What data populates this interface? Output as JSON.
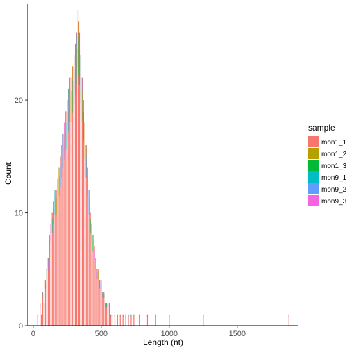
{
  "chart_data": {
    "type": "bar",
    "subtype": "stacked-histogram",
    "title": "",
    "xlabel": "Length (nt)",
    "ylabel": "Count",
    "xlim": [
      -40,
      1950
    ],
    "ylim": [
      0,
      28.5
    ],
    "xticks": [
      0,
      500,
      1000,
      1500
    ],
    "xtick_labels": [
      "0",
      "500",
      "1000",
      "1500"
    ],
    "yticks": [
      0,
      10,
      20
    ],
    "ytick_labels": [
      "0",
      "10",
      "20"
    ],
    "grid": false,
    "legend": {
      "title": "sample",
      "placement": "right",
      "entries": [
        {
          "label": "mon1_1",
          "color": "#F8766D"
        },
        {
          "label": "mon1_2",
          "color": "#B79F00"
        },
        {
          "label": "mon1_3",
          "color": "#00BA38"
        },
        {
          "label": "mon9_1",
          "color": "#00BFC4"
        },
        {
          "label": "mon9_2",
          "color": "#619CFF"
        },
        {
          "label": "mon9_3",
          "color": "#F564E3"
        }
      ]
    },
    "bin_width_nt": 5,
    "base_series": "mon1_1",
    "totals": [
      [
        30,
        1
      ],
      [
        50,
        2
      ],
      [
        60,
        1
      ],
      [
        70,
        3
      ],
      [
        80,
        2
      ],
      [
        90,
        4
      ],
      [
        100,
        5
      ],
      [
        110,
        6
      ],
      [
        120,
        8
      ],
      [
        130,
        9
      ],
      [
        140,
        10
      ],
      [
        150,
        11
      ],
      [
        160,
        12
      ],
      [
        170,
        12
      ],
      [
        180,
        13
      ],
      [
        190,
        14
      ],
      [
        200,
        15
      ],
      [
        210,
        16
      ],
      [
        220,
        17
      ],
      [
        230,
        18
      ],
      [
        240,
        19
      ],
      [
        250,
        20
      ],
      [
        260,
        21
      ],
      [
        270,
        22
      ],
      [
        280,
        22
      ],
      [
        290,
        23
      ],
      [
        300,
        24
      ],
      [
        310,
        25
      ],
      [
        320,
        26
      ],
      [
        330,
        28
      ],
      [
        335,
        27
      ],
      [
        340,
        26
      ],
      [
        350,
        24
      ],
      [
        360,
        22
      ],
      [
        370,
        20
      ],
      [
        380,
        18
      ],
      [
        390,
        16
      ],
      [
        400,
        14
      ],
      [
        410,
        12
      ],
      [
        420,
        10
      ],
      [
        430,
        9
      ],
      [
        440,
        8
      ],
      [
        450,
        7
      ],
      [
        460,
        6
      ],
      [
        470,
        5
      ],
      [
        480,
        5
      ],
      [
        490,
        4
      ],
      [
        500,
        4
      ],
      [
        510,
        3
      ],
      [
        520,
        3
      ],
      [
        530,
        2
      ],
      [
        540,
        2
      ],
      [
        550,
        2
      ],
      [
        560,
        2
      ],
      [
        570,
        1
      ],
      [
        580,
        1
      ],
      [
        600,
        1
      ],
      [
        620,
        1
      ],
      [
        640,
        1
      ],
      [
        660,
        1
      ],
      [
        680,
        1
      ],
      [
        700,
        1
      ],
      [
        720,
        1
      ],
      [
        740,
        1
      ],
      [
        780,
        1
      ],
      [
        840,
        1
      ],
      [
        900,
        1
      ],
      [
        1000,
        1
      ],
      [
        1250,
        1
      ],
      [
        1880,
        1
      ]
    ]
  }
}
